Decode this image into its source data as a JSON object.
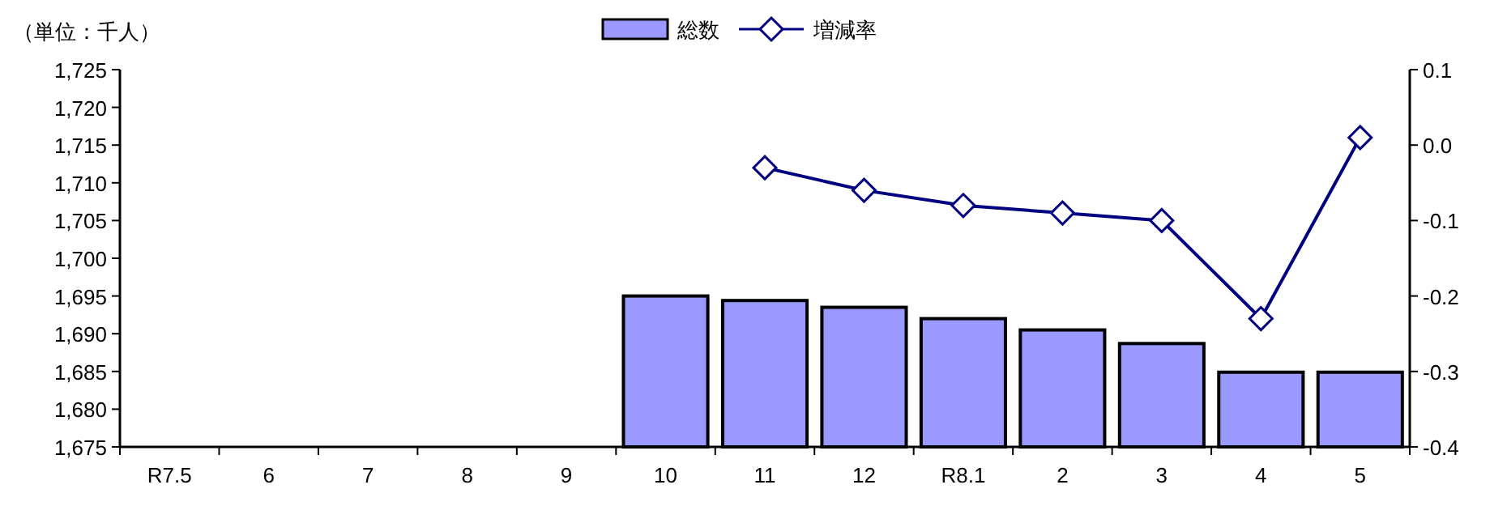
{
  "chart_data": {
    "type": "bar",
    "categories": [
      "R7.5",
      "6",
      "7",
      "8",
      "9",
      "10",
      "11",
      "12",
      "R8.1",
      "2",
      "3",
      "4",
      "5"
    ],
    "series": [
      {
        "name": "総数",
        "color": "#9999ff",
        "values": [
          null,
          null,
          null,
          null,
          null,
          1695.0,
          1694.4,
          1693.5,
          1692.0,
          1690.5,
          1688.7,
          1684.9,
          1684.9
        ]
      },
      {
        "name": "増減率",
        "type": "line",
        "axis": "y2",
        "color": "#000080",
        "marker": "diamond",
        "values": [
          null,
          null,
          null,
          null,
          null,
          null,
          -0.03,
          -0.06,
          -0.08,
          -0.09,
          -0.1,
          -0.23,
          0.01
        ]
      }
    ],
    "ylim": [
      1675,
      1725
    ],
    "yticks": [
      {
        "value": 1675,
        "label": "1,675"
      },
      {
        "value": 1680,
        "label": "1,680"
      },
      {
        "value": 1685,
        "label": "1,685"
      },
      {
        "value": 1690,
        "label": "1,690"
      },
      {
        "value": 1695,
        "label": "1,695"
      },
      {
        "value": 1700,
        "label": "1,700"
      },
      {
        "value": 1705,
        "label": "1,705"
      },
      {
        "value": 1710,
        "label": "1,710"
      },
      {
        "value": 1715,
        "label": "1,715"
      },
      {
        "value": 1720,
        "label": "1,720"
      },
      {
        "value": 1725,
        "label": "1,725"
      }
    ],
    "y2lim": [
      -0.4,
      0.1
    ],
    "y2ticks": [
      {
        "value": -0.4,
        "label": "-0.4"
      },
      {
        "value": -0.3,
        "label": "-0.3"
      },
      {
        "value": -0.2,
        "label": "-0.2"
      },
      {
        "value": -0.1,
        "label": "-0.1"
      },
      {
        "value": 0,
        "label": "0.0"
      },
      {
        "value": 0.1,
        "label": "0.1"
      }
    ],
    "annotations": [
      "（単位：千人）"
    ],
    "legend": "top"
  }
}
